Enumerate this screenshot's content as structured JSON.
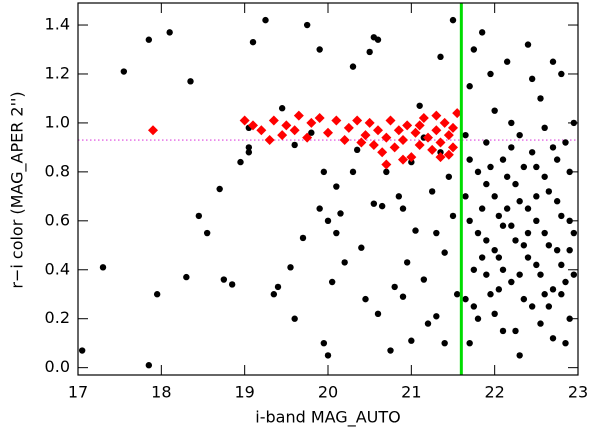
{
  "chart_data": {
    "type": "scatter",
    "xlabel": "i-band MAG_AUTO",
    "ylabel": "r−i color (MAG_APER 2'')",
    "xlim": [
      17,
      23
    ],
    "ylim": [
      -0.03,
      1.49
    ],
    "xticks": [
      17,
      18,
      19,
      20,
      21,
      22,
      23
    ],
    "yticks": [
      {
        "value": 0,
        "label": "0.0"
      },
      0.2,
      0.4,
      0.6,
      0.8,
      {
        "value": 1,
        "label": "1.0"
      },
      1.2,
      1.4
    ],
    "series": [
      {
        "color": "#000000",
        "marker": "circle",
        "x": [
          17.05,
          17.3,
          17.55,
          17.85,
          17.85,
          17.95,
          18.1,
          18.3,
          18.35,
          18.45,
          18.55,
          18.7,
          18.75,
          18.85,
          18.95,
          19.05,
          19.05,
          19.1,
          19.05,
          19.25,
          19.35,
          19.4,
          19.55,
          19.6,
          19.7,
          19.75,
          19.9,
          19.9,
          19.8,
          19.95,
          20.0,
          20.0,
          20.05,
          20.1,
          20.15,
          20.2,
          20.3,
          20.35,
          20.4,
          20.5,
          20.55,
          20.55,
          20.6,
          20.6,
          20.65,
          20.7,
          20.75,
          20.8,
          20.85,
          20.9,
          20.95,
          21.0,
          21.05,
          21.1,
          21.15,
          21.2,
          21.25,
          21.3,
          21.35,
          21.35,
          21.4,
          21.45,
          21.5,
          21.5,
          21.55,
          21.4,
          21.3,
          21.15,
          21.0,
          20.9,
          20.3,
          20.45,
          19.45,
          19.6,
          19.95,
          20.1,
          21.65,
          21.7,
          21.7,
          21.75,
          21.8,
          21.8,
          21.85,
          21.9,
          21.9,
          21.95,
          22.0,
          22.0,
          22.05,
          22.1,
          22.1,
          22.15,
          22.2,
          22.2,
          22.25,
          22.3,
          22.3,
          22.35,
          22.4,
          22.4,
          22.45,
          22.5,
          22.5,
          22.55,
          22.6,
          22.6,
          22.65,
          22.7,
          22.7,
          22.75,
          22.8,
          22.8,
          22.85,
          22.9,
          22.9,
          22.95,
          22.95,
          21.65,
          21.7,
          21.75,
          21.8,
          21.85,
          21.9,
          21.95,
          22.0,
          22.05,
          22.1,
          22.15,
          22.2,
          22.25,
          22.3,
          22.35,
          22.4,
          22.45,
          22.5,
          22.55,
          22.6,
          22.65,
          22.7,
          22.75,
          22.8,
          22.85,
          22.9,
          22.95,
          21.7,
          22.0,
          22.3,
          22.55,
          22.85,
          22.2,
          22.6,
          21.95,
          22.45,
          22.7,
          21.75,
          22.35,
          22.1,
          21.85,
          22.65,
          22.9,
          22.4,
          22.05,
          22.75,
          21.65,
          22.25,
          22.8,
          22.5,
          21.9,
          22.15
        ],
        "values": [
          0.07,
          0.41,
          1.21,
          1.34,
          0.01,
          0.3,
          1.37,
          0.37,
          1.17,
          0.62,
          0.55,
          0.73,
          0.36,
          0.34,
          0.84,
          0.9,
          0.88,
          1.33,
          0.98,
          1.42,
          0.3,
          0.33,
          0.41,
          0.2,
          0.53,
          1.4,
          1.3,
          0.65,
          0.96,
          0.8,
          0.6,
          0.05,
          0.35,
          0.55,
          0.63,
          0.43,
          1.23,
          0.89,
          0.49,
          1.29,
          1.35,
          0.67,
          1.34,
          0.22,
          0.66,
          0.8,
          0.07,
          0.33,
          0.7,
          0.65,
          0.43,
          0.11,
          0.56,
          1.07,
          0.36,
          0.18,
          0.72,
          0.55,
          1.27,
          0.88,
          0.47,
          0.78,
          1.42,
          0.62,
          0.3,
          0.1,
          0.21,
          0.94,
          0.84,
          0.29,
          0.8,
          0.28,
          1.06,
          0.91,
          0.1,
          0.74,
          0.95,
          0.6,
          1.15,
          0.4,
          0.8,
          0.2,
          1.37,
          0.52,
          0.92,
          0.3,
          0.7,
          1.05,
          0.45,
          0.85,
          0.15,
          1.25,
          0.58,
          0.35,
          0.75,
          0.95,
          0.05,
          0.5,
          1.32,
          0.65,
          0.25,
          0.82,
          0.42,
          1.1,
          0.55,
          0.3,
          0.72,
          0.9,
          0.12,
          0.48,
          1.2,
          0.62,
          0.35,
          0.8,
          0.2,
          0.55,
          1.0,
          0.7,
          0.85,
          0.25,
          0.55,
          0.65,
          0.38,
          0.82,
          0.48,
          0.62,
          0.4,
          0.78,
          0.9,
          0.52,
          0.68,
          0.28,
          0.45,
          0.88,
          0.6,
          0.38,
          0.78,
          0.5,
          0.32,
          0.68,
          0.42,
          0.92,
          0.6,
          0.38,
          0.1,
          0.22,
          0.38,
          0.18,
          0.1,
          1.0,
          0.98,
          1.2,
          1.18,
          1.25,
          1.3,
          0.82,
          0.58,
          0.45,
          0.25,
          0.48,
          0.55,
          0.32,
          0.85,
          0.28,
          0.15,
          0.3,
          0.7,
          0.75,
          0.65
        ]
      },
      {
        "color": "#ff0000",
        "marker": "diamond",
        "x": [
          17.9,
          19.1,
          19.2,
          19.3,
          19.35,
          19.45,
          19.5,
          19.6,
          19.65,
          19.75,
          19.8,
          19.9,
          20.0,
          20.1,
          20.2,
          20.25,
          20.35,
          20.45,
          20.5,
          20.55,
          20.6,
          20.65,
          20.7,
          20.75,
          20.8,
          20.85,
          20.9,
          20.95,
          21.0,
          21.05,
          21.1,
          21.15,
          21.2,
          21.25,
          21.3,
          21.35,
          21.4,
          21.45,
          21.5,
          21.55,
          21.5,
          21.45,
          21.3,
          20.7,
          20.9,
          19.0,
          21.1,
          21.35,
          20.4
        ],
        "values": [
          0.97,
          0.99,
          0.97,
          0.93,
          1.01,
          0.95,
          0.99,
          0.97,
          1.03,
          0.94,
          1.0,
          1.02,
          0.96,
          1.01,
          0.93,
          0.98,
          1.01,
          0.95,
          1.0,
          0.91,
          0.97,
          0.88,
          0.94,
          1.01,
          0.9,
          0.97,
          0.93,
          0.99,
          0.86,
          0.96,
          0.91,
          1.02,
          0.94,
          0.89,
          0.97,
          0.92,
          1.0,
          0.95,
          0.9,
          1.04,
          0.98,
          0.87,
          1.03,
          0.83,
          0.85,
          1.01,
          0.99,
          0.86,
          0.92
        ]
      }
    ],
    "vlines": [
      {
        "x": 21.6,
        "color": "#00dd00"
      }
    ],
    "hlines": [
      {
        "y": 0.93,
        "color": "#dd44dd"
      }
    ]
  }
}
